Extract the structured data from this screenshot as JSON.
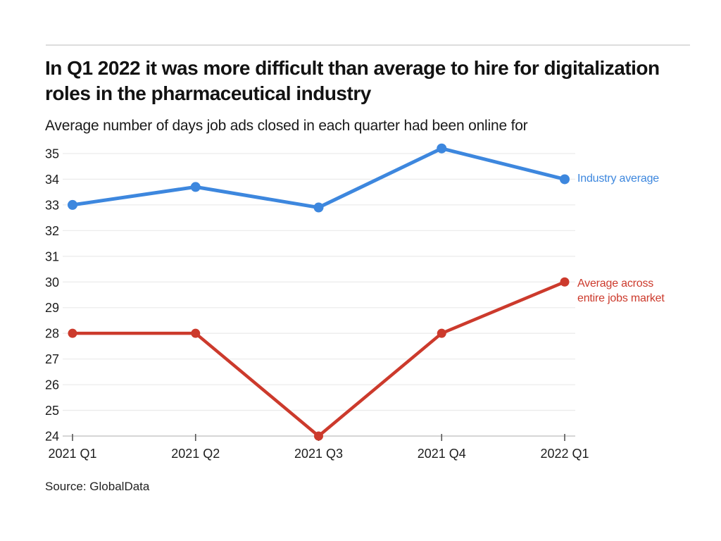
{
  "header": {
    "title": "In Q1 2022 it was more difficult than average to hire for digitalization roles in the pharmaceutical industry",
    "subtitle": "Average number of days job ads closed in each quarter had been online for"
  },
  "chart_data": {
    "type": "line",
    "categories": [
      "2021 Q1",
      "2021 Q2",
      "2021 Q3",
      "2021 Q4",
      "2022 Q1"
    ],
    "series": [
      {
        "name": "Industry average",
        "values": [
          33,
          33.7,
          32.9,
          35.2,
          34
        ],
        "color": "#3d87de"
      },
      {
        "name": "Average across entire jobs market",
        "values": [
          28,
          28,
          24,
          28,
          30
        ],
        "color": "#cc3a2c"
      }
    ],
    "title": "In Q1 2022 it was more difficult than average to hire for digitalization roles in the pharmaceutical industry",
    "subtitle": "Average number of days job ads closed in each quarter had been online for",
    "xlabel": "",
    "ylabel": "",
    "ylim": [
      24,
      35
    ],
    "ytick_step": 1,
    "grid": true,
    "legend_position": "right-of-line-end",
    "colors": {
      "axis_text": "#1d1d1d",
      "gridline": "#ececec",
      "baseline": "#c9c9c9",
      "tick": "#555555"
    }
  },
  "footer": {
    "source": "Source: GlobalData"
  }
}
